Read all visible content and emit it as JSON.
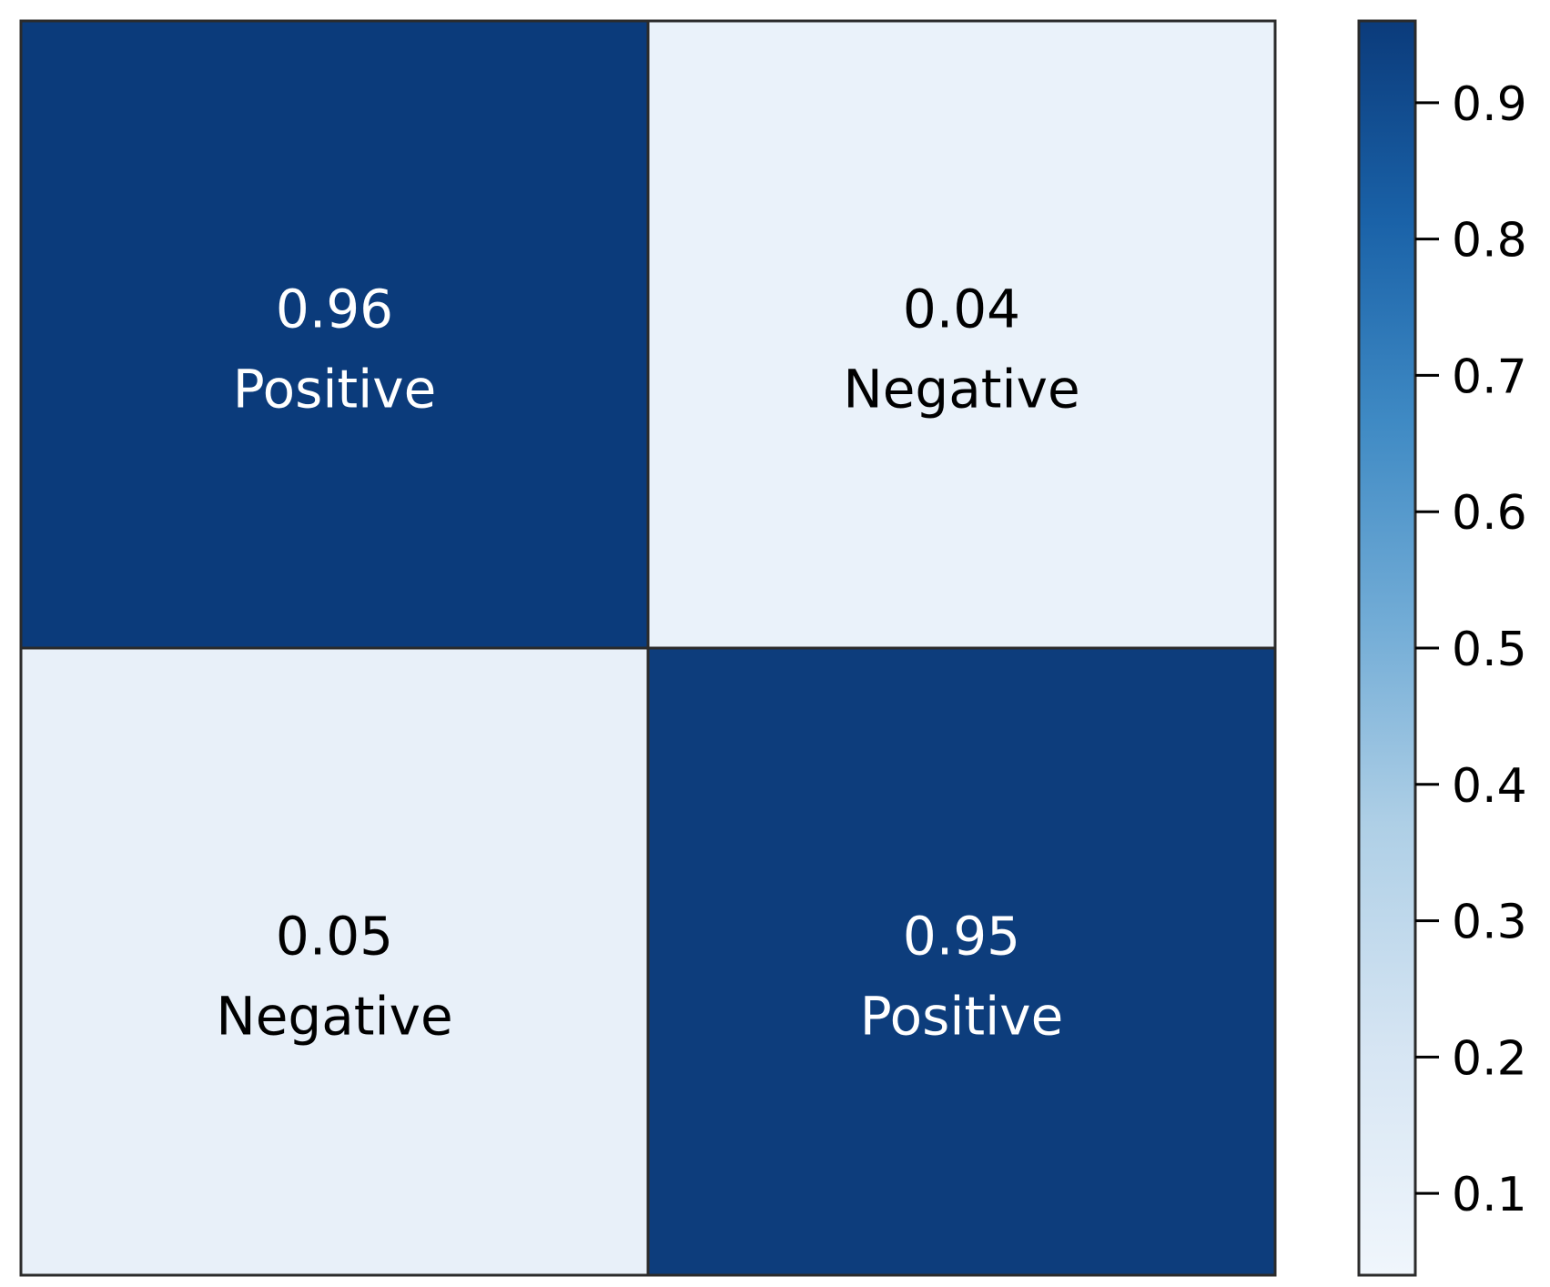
{
  "chart_data": {
    "type": "heatmap",
    "rows": 2,
    "cols": 2,
    "cells": [
      {
        "row": 0,
        "col": 0,
        "value": 0.96,
        "value_label": "0.96",
        "label": "Positive",
        "text_color": "#ffffff"
      },
      {
        "row": 0,
        "col": 1,
        "value": 0.04,
        "value_label": "0.04",
        "label": "Negative",
        "text_color": "#000000"
      },
      {
        "row": 1,
        "col": 0,
        "value": 0.05,
        "value_label": "0.05",
        "label": "Negative",
        "text_color": "#000000"
      },
      {
        "row": 1,
        "col": 1,
        "value": 0.95,
        "value_label": "0.95",
        "label": "Positive",
        "text_color": "#ffffff"
      }
    ],
    "colorbar": {
      "min": 0.04,
      "max": 0.96,
      "ticks": [
        0.1,
        0.2,
        0.3,
        0.4,
        0.5,
        0.6,
        0.7,
        0.8,
        0.9
      ],
      "tick_labels": [
        "0.1",
        "0.2",
        "0.3",
        "0.4",
        "0.5",
        "0.6",
        "0.7",
        "0.8",
        "0.9"
      ],
      "colormap": "Blues",
      "high_color": "#0b3b7b",
      "low_color": "#eaf2fa"
    },
    "title": "",
    "xlabel": "",
    "ylabel": "",
    "grid": false
  }
}
